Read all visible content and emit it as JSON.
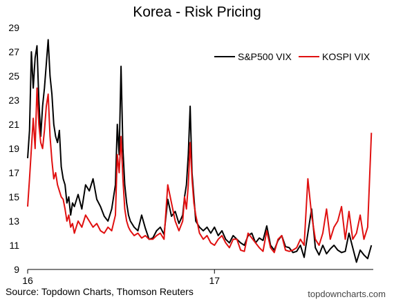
{
  "chart_data": {
    "type": "line",
    "title": "Korea - Risk Pricing",
    "xlabel": "",
    "ylabel": "",
    "ylim": [
      9,
      29
    ],
    "yticks": [
      9,
      11,
      13,
      15,
      17,
      19,
      21,
      23,
      25,
      27,
      29
    ],
    "xlim": [
      2016.0,
      2017.85
    ],
    "xticks": [
      {
        "value": 2016.0,
        "label": "16"
      },
      {
        "value": 2017.0,
        "label": "17"
      }
    ],
    "grid": false,
    "legend": "top-right",
    "series": [
      {
        "name": "S&P500 VIX",
        "color": "#000000",
        "x": [
          2016.0,
          2016.01,
          2016.02,
          2016.03,
          2016.04,
          2016.05,
          2016.06,
          2016.07,
          2016.08,
          2016.09,
          2016.1,
          2016.11,
          2016.12,
          2016.13,
          2016.14,
          2016.15,
          2016.16,
          2016.17,
          2016.18,
          2016.19,
          2016.2,
          2016.21,
          2016.22,
          2016.23,
          2016.24,
          2016.25,
          2016.27,
          2016.29,
          2016.31,
          2016.33,
          2016.35,
          2016.37,
          2016.39,
          2016.41,
          2016.43,
          2016.45,
          2016.47,
          2016.48,
          2016.49,
          2016.5,
          2016.51,
          2016.52,
          2016.53,
          2016.54,
          2016.55,
          2016.57,
          2016.59,
          2016.61,
          2016.63,
          2016.65,
          2016.67,
          2016.69,
          2016.71,
          2016.73,
          2016.75,
          2016.77,
          2016.79,
          2016.81,
          2016.83,
          2016.84,
          2016.85,
          2016.86,
          2016.87,
          2016.88,
          2016.89,
          2016.9,
          2016.92,
          2016.94,
          2016.96,
          2016.98,
          2017.0,
          2017.02,
          2017.04,
          2017.06,
          2017.08,
          2017.1,
          2017.12,
          2017.14,
          2017.16,
          2017.18,
          2017.2,
          2017.22,
          2017.24,
          2017.26,
          2017.28,
          2017.3,
          2017.32,
          2017.34,
          2017.36,
          2017.38,
          2017.4,
          2017.42,
          2017.44,
          2017.46,
          2017.48,
          2017.5,
          2017.52,
          2017.54,
          2017.56,
          2017.58,
          2017.6,
          2017.62,
          2017.64,
          2017.66,
          2017.68,
          2017.7,
          2017.72,
          2017.74,
          2017.76,
          2017.78,
          2017.8,
          2017.82,
          2017.84
        ],
        "values": [
          18.2,
          20.5,
          27.0,
          24.0,
          26.5,
          27.5,
          23.0,
          20.0,
          22.5,
          24.0,
          26.0,
          28.0,
          25.0,
          23.5,
          21.0,
          20.0,
          19.5,
          20.5,
          17.5,
          16.5,
          16.0,
          14.5,
          15.0,
          13.5,
          14.5,
          14.2,
          15.2,
          14.0,
          16.0,
          15.5,
          16.5,
          14.8,
          14.2,
          13.4,
          13.0,
          14.0,
          16.0,
          21.0,
          18.5,
          25.8,
          19.0,
          16.0,
          14.5,
          13.5,
          13.0,
          12.5,
          12.2,
          13.5,
          12.4,
          11.5,
          11.6,
          12.2,
          12.5,
          11.9,
          14.8,
          13.4,
          13.8,
          12.8,
          13.5,
          15.0,
          16.0,
          18.5,
          22.5,
          17.0,
          15.0,
          13.0,
          12.5,
          12.2,
          12.5,
          12.0,
          12.5,
          11.8,
          12.2,
          11.5,
          11.2,
          11.8,
          11.5,
          11.2,
          11.0,
          11.8,
          12.0,
          11.2,
          11.6,
          11.4,
          12.6,
          11.0,
          10.6,
          11.4,
          11.8,
          10.9,
          10.8,
          10.4,
          10.5,
          11.0,
          10.0,
          12.0,
          14.0,
          10.8,
          10.2,
          11.0,
          10.3,
          10.7,
          11.0,
          10.6,
          10.4,
          10.5,
          12.0,
          10.8,
          9.6,
          10.6,
          10.2,
          9.9,
          11.0
        ]
      },
      {
        "name": "KOSPI VIX",
        "color": "#e01010",
        "x": [
          2016.0,
          2016.01,
          2016.02,
          2016.03,
          2016.04,
          2016.05,
          2016.06,
          2016.07,
          2016.08,
          2016.09,
          2016.1,
          2016.11,
          2016.12,
          2016.13,
          2016.14,
          2016.15,
          2016.16,
          2016.17,
          2016.18,
          2016.19,
          2016.2,
          2016.21,
          2016.22,
          2016.23,
          2016.24,
          2016.25,
          2016.27,
          2016.29,
          2016.31,
          2016.33,
          2016.35,
          2016.37,
          2016.39,
          2016.41,
          2016.43,
          2016.45,
          2016.47,
          2016.48,
          2016.49,
          2016.5,
          2016.51,
          2016.52,
          2016.53,
          2016.54,
          2016.55,
          2016.57,
          2016.59,
          2016.61,
          2016.63,
          2016.65,
          2016.67,
          2016.69,
          2016.71,
          2016.73,
          2016.75,
          2016.77,
          2016.79,
          2016.81,
          2016.83,
          2016.84,
          2016.85,
          2016.86,
          2016.87,
          2016.88,
          2016.89,
          2016.9,
          2016.92,
          2016.94,
          2016.96,
          2016.98,
          2017.0,
          2017.02,
          2017.04,
          2017.06,
          2017.08,
          2017.1,
          2017.12,
          2017.14,
          2017.16,
          2017.18,
          2017.2,
          2017.22,
          2017.24,
          2017.26,
          2017.28,
          2017.3,
          2017.32,
          2017.34,
          2017.36,
          2017.38,
          2017.4,
          2017.42,
          2017.44,
          2017.46,
          2017.48,
          2017.5,
          2017.52,
          2017.54,
          2017.56,
          2017.58,
          2017.6,
          2017.62,
          2017.64,
          2017.66,
          2017.68,
          2017.7,
          2017.72,
          2017.74,
          2017.76,
          2017.78,
          2017.8,
          2017.82,
          2017.84
        ],
        "values": [
          14.2,
          16.5,
          19.0,
          21.5,
          19.0,
          24.0,
          21.0,
          19.5,
          19.0,
          20.5,
          22.5,
          23.5,
          20.0,
          18.0,
          16.5,
          17.0,
          16.0,
          15.5,
          15.0,
          14.8,
          14.0,
          13.0,
          13.5,
          12.5,
          12.8,
          12.0,
          13.0,
          12.5,
          13.5,
          13.0,
          12.5,
          12.8,
          12.2,
          12.0,
          12.5,
          12.2,
          13.5,
          18.5,
          17.0,
          20.0,
          16.5,
          14.0,
          13.0,
          12.5,
          12.2,
          11.8,
          12.0,
          11.6,
          11.8,
          11.5,
          11.5,
          11.8,
          12.0,
          11.5,
          16.0,
          14.5,
          13.0,
          12.2,
          13.0,
          15.0,
          14.0,
          16.0,
          19.5,
          16.5,
          14.5,
          13.5,
          12.0,
          11.5,
          11.8,
          11.2,
          11.0,
          11.5,
          11.8,
          11.2,
          10.8,
          11.5,
          11.5,
          10.6,
          10.5,
          12.0,
          11.6,
          11.2,
          10.8,
          10.5,
          12.2,
          10.8,
          10.4,
          11.5,
          11.8,
          10.6,
          10.5,
          10.6,
          10.8,
          11.5,
          11.0,
          16.5,
          13.5,
          11.5,
          11.0,
          12.0,
          14.0,
          11.5,
          12.5,
          13.0,
          14.2,
          11.5,
          13.8,
          11.5,
          12.0,
          13.5,
          11.5,
          12.5,
          20.3
        ]
      }
    ]
  },
  "footer": {
    "source": "Source: Topdown Charts, Thomson Reuters",
    "brand": "topdowncharts.com"
  }
}
